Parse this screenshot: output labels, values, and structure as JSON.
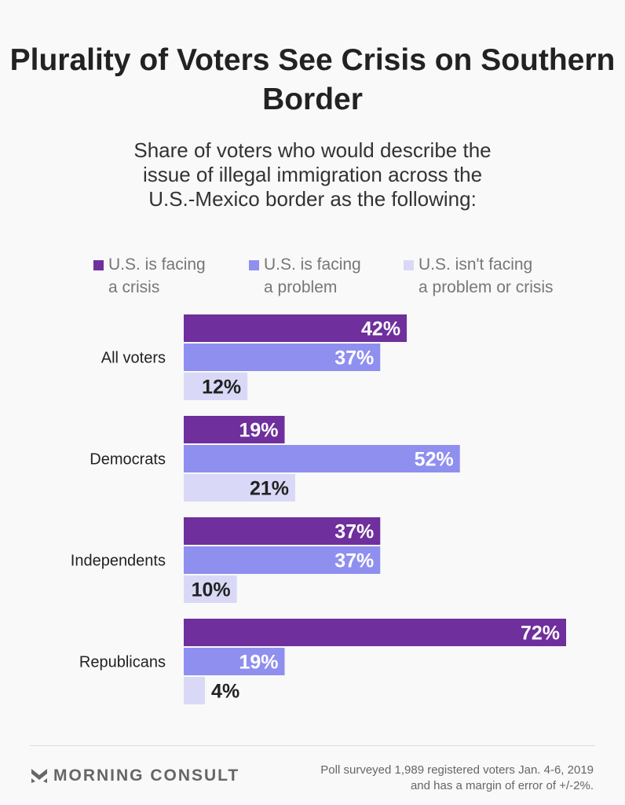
{
  "chart_data": {
    "type": "bar",
    "orientation": "horizontal",
    "title": "Plurality of Voters See Crisis on Southern Border",
    "subtitle": [
      "Share of voters who would describe the",
      "issue of illegal immigration across the",
      "U.S.-Mexico border as the following:"
    ],
    "categories": [
      "All voters",
      "Democrats",
      "Independents",
      "Republicans"
    ],
    "series": [
      {
        "name": "U.S. is facing a crisis",
        "legend_lines": [
          "U.S. is facing",
          "a crisis"
        ],
        "color": "#6f2f9c",
        "values": [
          42,
          19,
          37,
          72
        ]
      },
      {
        "name": "U.S. is facing a problem",
        "legend_lines": [
          "U.S. is facing",
          "a problem"
        ],
        "color": "#8f8ff0",
        "values": [
          37,
          52,
          37,
          19
        ]
      },
      {
        "name": "U.S. isn't facing a problem or crisis",
        "legend_lines": [
          "U.S. isn't facing",
          "a problem or crisis"
        ],
        "color": "#d9d9f7",
        "values": [
          12,
          21,
          10,
          4
        ]
      }
    ],
    "value_suffix": "%",
    "legend_position": "top",
    "grid": false,
    "xlim": [
      0,
      72
    ]
  },
  "footer": {
    "brand": "MORNING CONSULT",
    "note": [
      "Poll surveyed 1,989 registered voters Jan. 4-6, 2019",
      "and has a margin of error of +/-2%."
    ]
  }
}
